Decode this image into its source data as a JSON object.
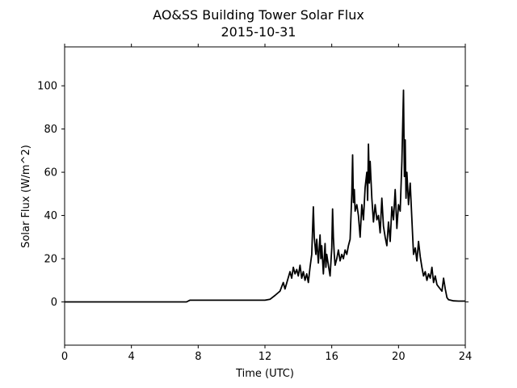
{
  "chart_data": {
    "type": "line",
    "title": "AO&SS Building Tower Solar Flux",
    "subtitle": "2015-10-31",
    "xlabel": "Time (UTC)",
    "ylabel": "Solar Flux (W/m^2)",
    "xlim": [
      0,
      24
    ],
    "ylim": [
      -20,
      118
    ],
    "xticks": [
      0,
      4,
      8,
      12,
      16,
      20,
      24
    ],
    "yticks": [
      0,
      20,
      40,
      60,
      80,
      100
    ],
    "grid": false,
    "line_color": "#000000",
    "series": [
      {
        "x": [
          0,
          7.3,
          7.5,
          8,
          12,
          12.3,
          12.6,
          12.9,
          13.1,
          13.2,
          13.35,
          13.5,
          13.6,
          13.7,
          13.8,
          13.9,
          14.0,
          14.1,
          14.2,
          14.3,
          14.4,
          14.5,
          14.6,
          14.7,
          14.8,
          14.9,
          14.95,
          15.0,
          15.05,
          15.1,
          15.2,
          15.3,
          15.35,
          15.4,
          15.5,
          15.6,
          15.65,
          15.7,
          15.8,
          15.9,
          16.0,
          16.05,
          16.1,
          16.15,
          16.2,
          16.3,
          16.4,
          16.5,
          16.6,
          16.7,
          16.8,
          16.9,
          17.0,
          17.1,
          17.2,
          17.25,
          17.3,
          17.35,
          17.4,
          17.5,
          17.6,
          17.7,
          17.8,
          17.9,
          18.0,
          18.1,
          18.15,
          18.2,
          18.25,
          18.3,
          18.4,
          18.5,
          18.6,
          18.7,
          18.8,
          18.9,
          19.0,
          19.1,
          19.2,
          19.3,
          19.4,
          19.5,
          19.6,
          19.7,
          19.8,
          19.9,
          20.0,
          20.1,
          20.2,
          20.3,
          20.35,
          20.4,
          20.45,
          20.5,
          20.6,
          20.7,
          20.8,
          20.9,
          21.0,
          21.1,
          21.2,
          21.3,
          21.4,
          21.5,
          21.6,
          21.7,
          21.8,
          21.9,
          22.0,
          22.1,
          22.2,
          22.3,
          22.4,
          22.5,
          22.6,
          22.7,
          22.8,
          22.9,
          23.0,
          23.3,
          23.6,
          24
        ],
        "values": [
          0,
          0,
          0.8,
          0.8,
          0.8,
          1.2,
          3,
          5,
          9,
          6,
          10,
          14,
          11,
          16,
          13,
          15,
          12,
          17,
          11,
          14,
          10,
          13,
          9,
          16,
          22,
          44,
          30,
          26,
          22,
          29,
          18,
          31,
          20,
          26,
          13,
          27,
          16,
          22,
          17,
          12,
          25,
          43,
          30,
          22,
          17,
          20,
          24,
          19,
          22,
          20,
          24,
          22,
          26,
          29,
          50,
          68,
          46,
          52,
          42,
          45,
          40,
          30,
          45,
          38,
          53,
          60,
          47,
          73,
          55,
          65,
          48,
          37,
          45,
          38,
          40,
          32,
          48,
          35,
          30,
          26,
          37,
          28,
          44,
          38,
          52,
          34,
          45,
          42,
          65,
          98,
          58,
          75,
          48,
          60,
          45,
          55,
          38,
          22,
          25,
          19,
          28,
          21,
          16,
          12,
          14,
          10,
          13,
          11,
          16,
          9,
          12,
          8,
          7,
          6,
          5,
          11,
          6,
          2,
          1,
          0.5,
          0.4,
          0.4
        ]
      }
    ]
  }
}
